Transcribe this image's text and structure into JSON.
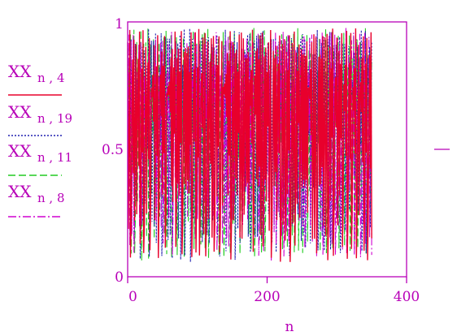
{
  "chart_data": {
    "type": "line",
    "title": "",
    "xlabel": "n",
    "ylabel": "",
    "xlim": [
      0,
      400
    ],
    "ylim": [
      0,
      1
    ],
    "x_ticks": [
      {
        "value": 0,
        "label": "0"
      },
      {
        "value": 200,
        "label": "200"
      },
      {
        "value": 400,
        "label": "400"
      }
    ],
    "y_ticks": [
      {
        "value": 0,
        "label": "0"
      },
      {
        "value": 0.5,
        "label": "0.5"
      },
      {
        "value": 1,
        "label": "1"
      }
    ],
    "grid": false,
    "legend_position": "left",
    "marker_y_value": 0.5,
    "n_points": 351,
    "series": [
      {
        "name": "XX",
        "subscript": "n , 4",
        "color": "#e8002c",
        "dash": "solid"
      },
      {
        "name": "XX",
        "subscript": "n , 19",
        "color": "#2020b0",
        "dash": "dotted"
      },
      {
        "name": "XX",
        "subscript": "n , 11",
        "color": "#22cc22",
        "dash": "dashed"
      },
      {
        "name": "XX",
        "subscript": "n , 8",
        "color": "#d000d0",
        "dash": "dashdot"
      }
    ]
  },
  "colors": {
    "frame": "#b800b8",
    "background": "#ffffff"
  }
}
